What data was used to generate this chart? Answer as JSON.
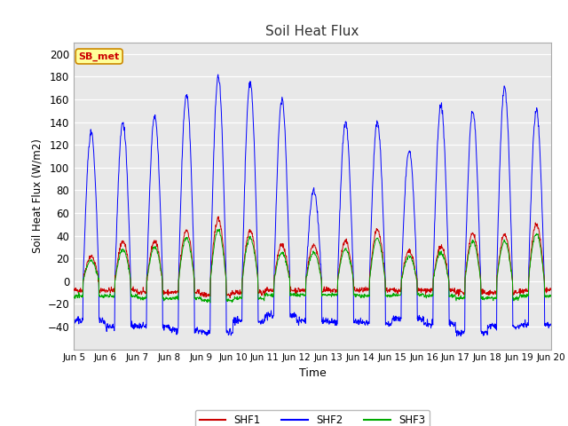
{
  "title": "Soil Heat Flux",
  "xlabel": "Time",
  "ylabel": "Soil Heat Flux (W/m2)",
  "ylim": [
    -60,
    210
  ],
  "yticks": [
    -40,
    -20,
    0,
    20,
    40,
    60,
    80,
    100,
    120,
    140,
    160,
    180,
    200
  ],
  "fig_bg_color": "#ffffff",
  "plot_bg_color": "#e8e8e8",
  "grid_color": "#ffffff",
  "line_colors": {
    "SHF1": "#cc0000",
    "SHF2": "#0000ff",
    "SHF3": "#00aa00"
  },
  "annotation_text": "SB_met",
  "annotation_color": "#cc0000",
  "annotation_bg": "#ffff99",
  "annotation_border": "#cc8800",
  "n_days": 15,
  "pts_per_day": 96,
  "shf2_peaks": [
    130,
    140,
    145,
    165,
    180,
    175,
    160,
    80,
    140,
    140,
    115,
    155,
    150,
    170,
    150
  ],
  "shf2_troughs": [
    -35,
    -40,
    -40,
    -43,
    -45,
    -35,
    -30,
    -35,
    -36,
    -37,
    -33,
    -38,
    -45,
    -40,
    -38
  ],
  "shf1_peaks": [
    22,
    35,
    35,
    45,
    55,
    45,
    32,
    32,
    35,
    45,
    26,
    30,
    42,
    41,
    50
  ],
  "shf1_troughs": [
    -8,
    -8,
    -10,
    -10,
    -12,
    -10,
    -8,
    -8,
    -8,
    -8,
    -8,
    -8,
    -10,
    -10,
    -8
  ],
  "shf3_peaks": [
    18,
    28,
    30,
    38,
    45,
    38,
    25,
    25,
    28,
    38,
    22,
    25,
    35,
    35,
    42
  ],
  "shf3_troughs": [
    -13,
    -13,
    -15,
    -15,
    -17,
    -15,
    -12,
    -12,
    -12,
    -13,
    -12,
    -13,
    -15,
    -15,
    -13
  ]
}
